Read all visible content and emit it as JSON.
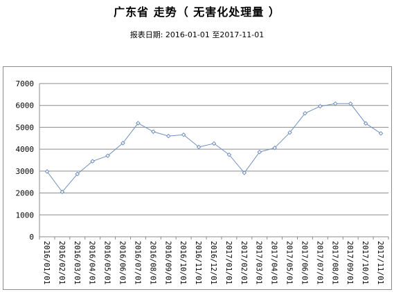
{
  "title": "广东省 走势（ 无害化处理量 ）",
  "subtitle": "报表日期: 2016-01-01 至2017-11-01",
  "chart_data": {
    "type": "line",
    "title": "广东省 走势（ 无害化处理量 ）",
    "subtitle": "报表日期: 2016-01-01 至2017-11-01",
    "xlabel": "",
    "ylabel": "",
    "ylim": [
      0,
      7000
    ],
    "yticks": [
      0,
      1000,
      2000,
      3000,
      4000,
      5000,
      6000,
      7000
    ],
    "grid": true,
    "legend": "none",
    "categories": [
      "2016/01/01",
      "2016/02/01",
      "2016/03/01",
      "2016/04/01",
      "2016/05/01",
      "2016/06/01",
      "2016/07/01",
      "2016/08/01",
      "2016/09/01",
      "2016/10/01",
      "2016/11/01",
      "2016/12/01",
      "2017/01/01",
      "2017/02/01",
      "2017/03/01",
      "2017/04/01",
      "2017/05/01",
      "2017/06/01",
      "2017/07/01",
      "2017/08/01",
      "2017/09/01",
      "2017/10/01",
      "2017/11/01"
    ],
    "series": [
      {
        "values": [
          2980,
          2050,
          2870,
          3450,
          3700,
          4280,
          5190,
          4800,
          4600,
          4660,
          4100,
          4260,
          3750,
          2920,
          3870,
          4060,
          4760,
          5640,
          5960,
          6080,
          6080,
          5180,
          4720
        ]
      }
    ],
    "line_color": "#6f8fbf"
  }
}
